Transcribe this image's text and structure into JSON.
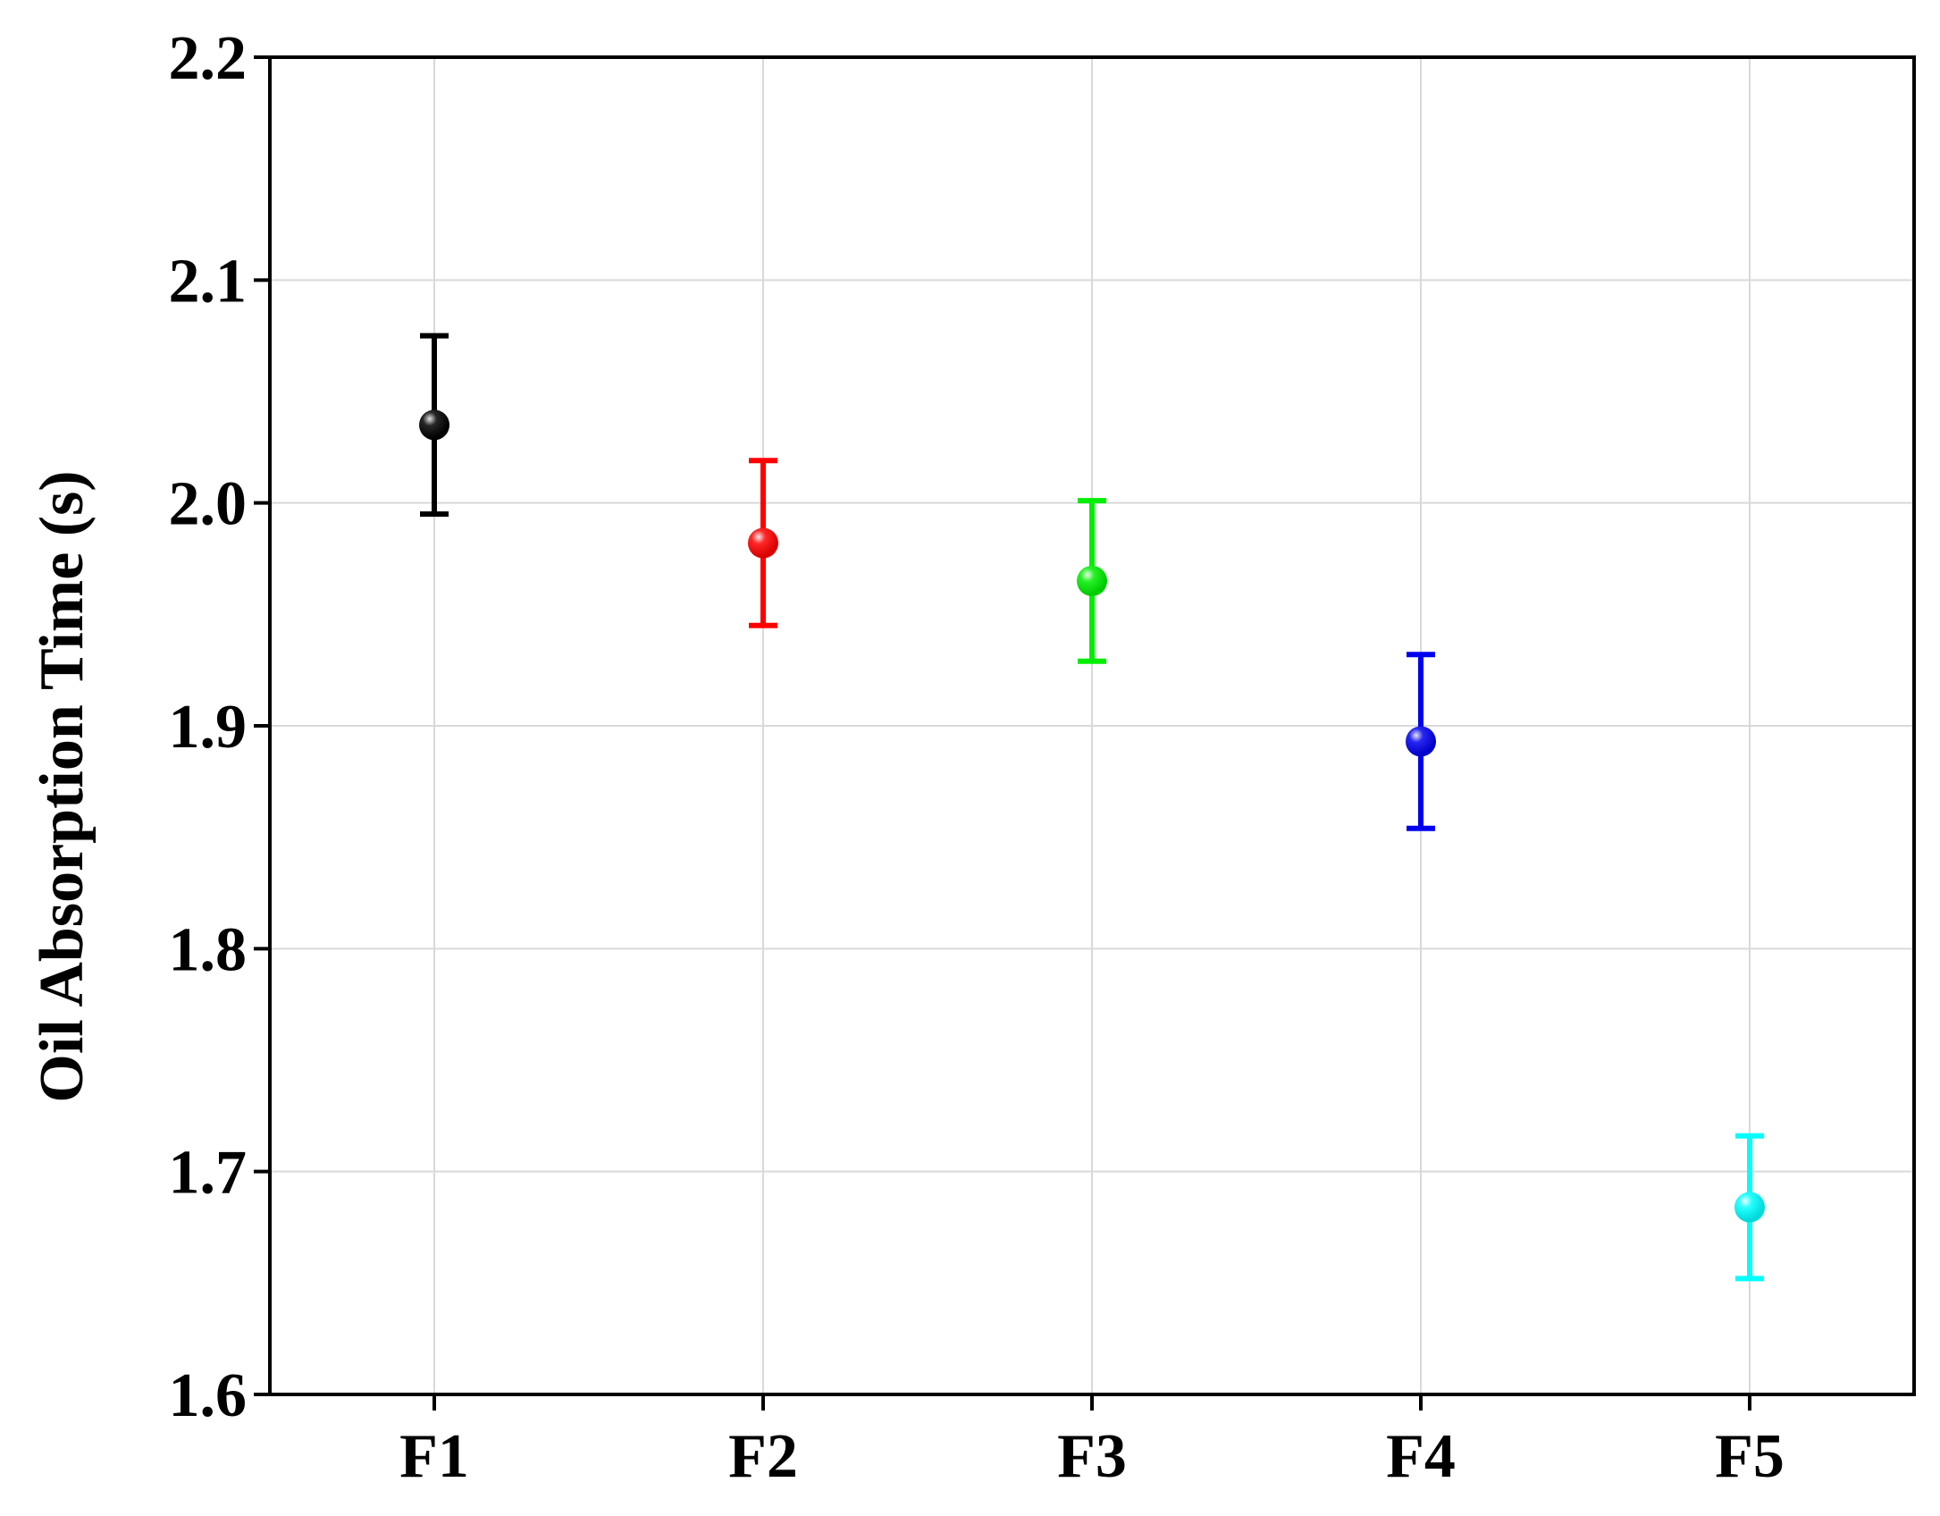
{
  "chart_data": {
    "type": "scatter",
    "title": "",
    "xlabel": "",
    "ylabel": "Oil Absorption Time (s)",
    "categories": [
      "F1",
      "F2",
      "F3",
      "F4",
      "F5"
    ],
    "values": [
      2.035,
      1.982,
      1.965,
      1.893,
      1.684
    ],
    "errors": [
      0.04,
      0.037,
      0.036,
      0.039,
      0.032
    ],
    "colors": [
      "#000000",
      "#ff0000",
      "#00ee00",
      "#0000ee",
      "#00ffff"
    ],
    "ylim": [
      1.6,
      2.2
    ],
    "yticks": [
      "1.6",
      "1.7",
      "1.8",
      "1.9",
      "2.0",
      "2.1",
      "2.2"
    ],
    "grid": true,
    "legend": "none"
  }
}
